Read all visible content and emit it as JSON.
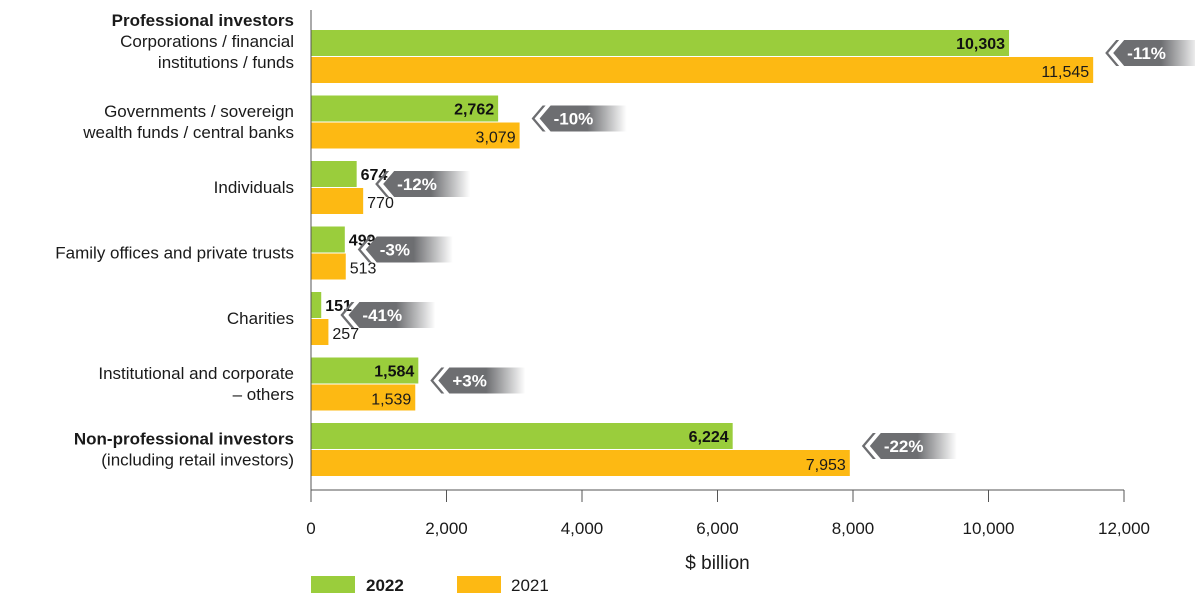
{
  "chart_data": {
    "type": "bar",
    "orientation": "horizontal",
    "xlabel": "$ billion",
    "xlim": [
      0,
      12000
    ],
    "xticks": [
      "0",
      "2,000",
      "4,000",
      "6,000",
      "8,000",
      "10,000",
      "12,000"
    ],
    "colors": {
      "2022": "#9ACD3C",
      "2021": "#FDB913",
      "badge": "#6D6E71"
    },
    "series": [
      {
        "name": "2022"
      },
      {
        "name": "2021"
      }
    ],
    "categories": [
      {
        "heading": "Professional investors",
        "lines": [
          "Corporations / financial",
          "institutions / funds"
        ],
        "v2022": 10303,
        "v2021": 11545,
        "label2022": "10,303",
        "label2021": "11,545",
        "change": "-11%"
      },
      {
        "lines": [
          "Governments / sovereign",
          "wealth funds / central banks"
        ],
        "v2022": 2762,
        "v2021": 3079,
        "label2022": "2,762",
        "label2021": "3,079",
        "change": "-10%"
      },
      {
        "lines": [
          "Individuals"
        ],
        "v2022": 674,
        "v2021": 770,
        "label2022": "674",
        "label2021": "770",
        "change": "-12%"
      },
      {
        "lines": [
          "Family offices and private trusts"
        ],
        "v2022": 499,
        "v2021": 513,
        "label2022": "499",
        "label2021": "513",
        "change": "-3%"
      },
      {
        "lines": [
          "Charities"
        ],
        "v2022": 151,
        "v2021": 257,
        "label2022": "151",
        "label2021": "257",
        "change": "-41%"
      },
      {
        "lines": [
          "Institutional and corporate",
          "– others"
        ],
        "v2022": 1584,
        "v2021": 1539,
        "label2022": "1,584",
        "label2021": "1,539",
        "change": "+3%"
      },
      {
        "boldLines": [
          "Non-professional investors"
        ],
        "lines": [
          "(including retail investors)"
        ],
        "v2022": 6224,
        "v2021": 7953,
        "label2022": "6,224",
        "label2021": "7,953",
        "change": "-22%"
      }
    ]
  }
}
